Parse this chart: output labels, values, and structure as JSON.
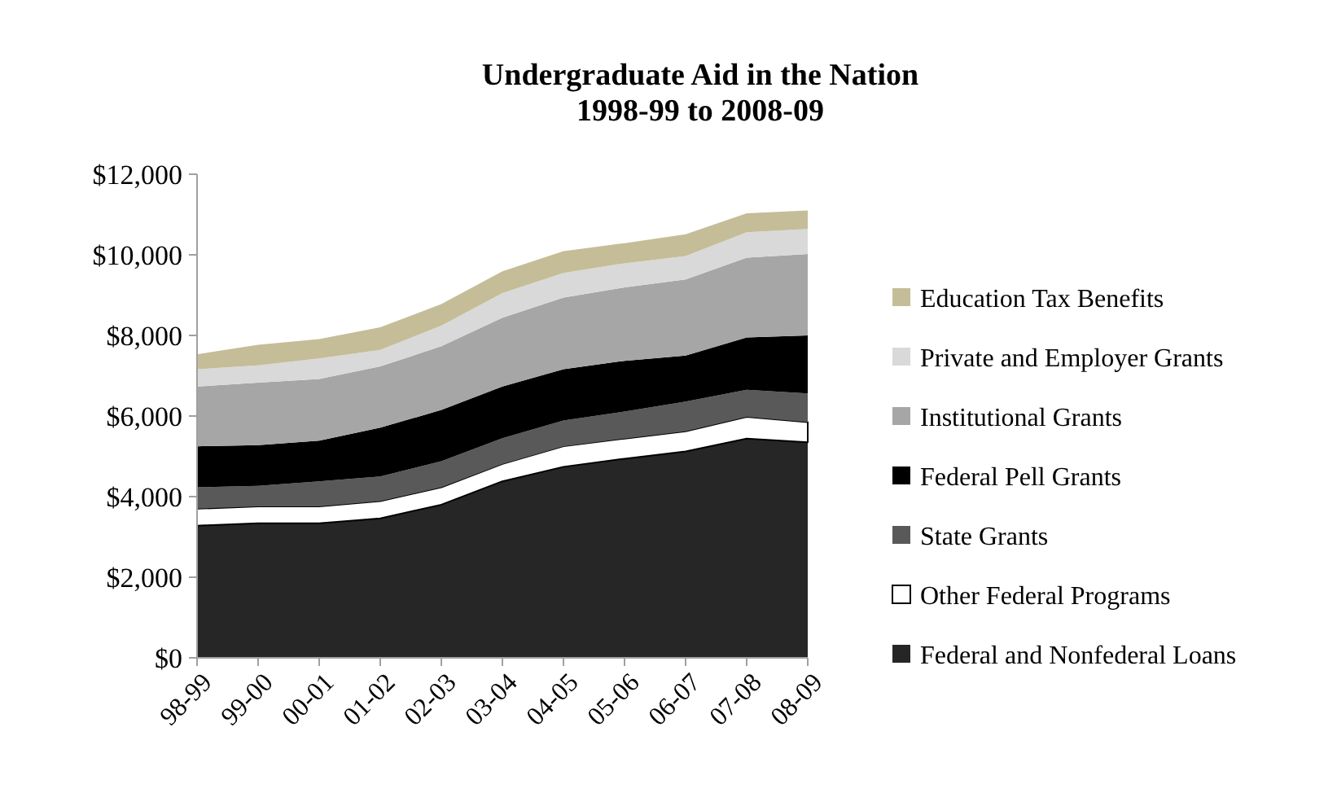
{
  "chart_data": {
    "type": "area",
    "stacked": true,
    "title": "Undergraduate Aid in the Nation\n1998-99 to 2008-09",
    "categories": [
      "98-99",
      "99-00",
      "00-01",
      "01-02",
      "02-03",
      "03-04",
      "04-05",
      "05-06",
      "06-07",
      "07-08",
      "08-09"
    ],
    "ylim": [
      0,
      12000
    ],
    "yticks": [
      {
        "value": 0,
        "label": "$0"
      },
      {
        "value": 2000,
        "label": "$2,000"
      },
      {
        "value": 4000,
        "label": "$4,000"
      },
      {
        "value": 6000,
        "label": "$6,000"
      },
      {
        "value": 8000,
        "label": "$8,000"
      },
      {
        "value": 10000,
        "label": "$10,000"
      },
      {
        "value": 12000,
        "label": "$12,000"
      }
    ],
    "grid": false,
    "legend": "right",
    "series": [
      {
        "name": "Federal and Nonfederal Loans",
        "color": "#262626",
        "values": [
          3280,
          3340,
          3340,
          3460,
          3800,
          4380,
          4740,
          4940,
          5120,
          5440,
          5350
        ]
      },
      {
        "name": "Other Federal Programs",
        "color": "#ffffff",
        "values": [
          420,
          420,
          420,
          430,
          430,
          430,
          510,
          500,
          500,
          540,
          500
        ]
      },
      {
        "name": "State Grants",
        "color": "#595959",
        "values": [
          530,
          510,
          620,
          610,
          650,
          640,
          640,
          670,
          740,
          670,
          710
        ]
      },
      {
        "name": "Federal Pell Grants",
        "color": "#000000",
        "values": [
          1020,
          1010,
          1010,
          1210,
          1270,
          1280,
          1270,
          1260,
          1140,
          1300,
          1440
        ]
      },
      {
        "name": "Institutional Grants",
        "color": "#a6a6a6",
        "values": [
          1480,
          1550,
          1530,
          1520,
          1580,
          1710,
          1780,
          1820,
          1890,
          1980,
          2020
        ]
      },
      {
        "name": "Private and Employer Grants",
        "color": "#d9d9d9",
        "values": [
          430,
          430,
          510,
          410,
          510,
          610,
          610,
          600,
          580,
          630,
          620
        ]
      },
      {
        "name": "Education Tax Benefits",
        "color": "#c4bd97",
        "values": [
          370,
          510,
          480,
          560,
          540,
          540,
          540,
          500,
          540,
          470,
          460
        ]
      }
    ]
  }
}
